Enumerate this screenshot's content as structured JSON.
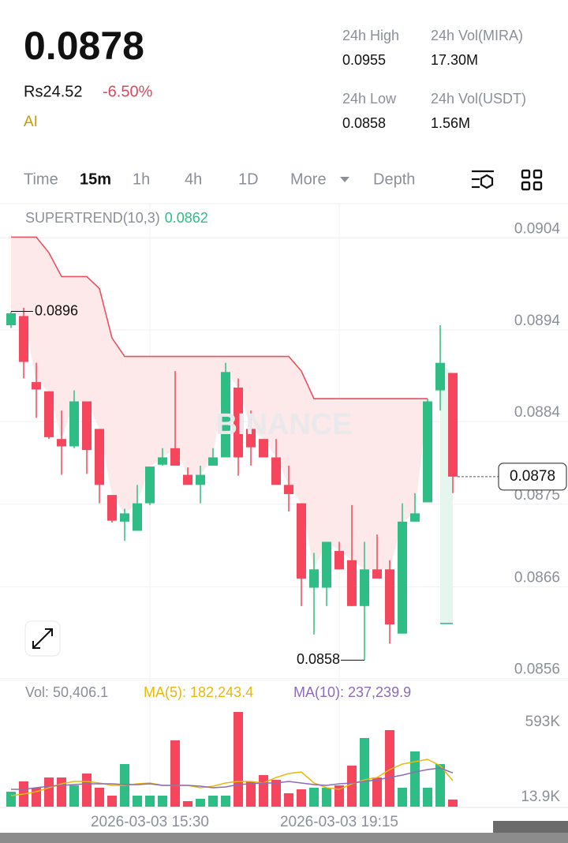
{
  "header": {
    "price": "0.0878",
    "fiat": "Rs24.52",
    "change": "-6.50%",
    "ai": "AI"
  },
  "stats": [
    {
      "label": "24h High",
      "value": "0.0955"
    },
    {
      "label": "24h Vol(MIRA)",
      "value": "17.30M"
    },
    {
      "label": "24h Low",
      "value": "0.0858"
    },
    {
      "label": "24h Vol(USDT)",
      "value": "1.56M"
    }
  ],
  "tabs": [
    "Time",
    "15m",
    "1h",
    "4h",
    "1D",
    "More",
    "Depth"
  ],
  "watermark": "BINANCE",
  "chart_data": {
    "type": "candlestick",
    "indicator": "SUPERTREND(10,3)",
    "up_color": "#2ebd85",
    "down_color": "#f6465d",
    "categories": [
      null,
      null,
      null,
      null,
      null,
      null,
      null,
      null,
      null,
      null,
      null,
      "2026-03-03 15:30",
      null,
      null,
      null,
      null,
      null,
      null,
      null,
      null,
      null,
      null,
      null,
      null,
      null,
      null,
      "2026-03-03 19:15",
      null,
      null,
      null,
      null,
      null,
      null,
      null,
      null,
      null
    ],
    "open": [
      0.08945,
      0.08955,
      0.08883,
      0.08873,
      0.08821,
      0.08813,
      0.08862,
      0.08832,
      0.0876,
      0.08731,
      0.08721,
      0.08751,
      0.08793,
      0.08811,
      0.08782,
      0.08771,
      0.08792,
      0.08801,
      0.08877,
      0.08832,
      0.08821,
      0.08801,
      0.08771,
      0.08751,
      0.08659,
      0.08659,
      0.08699,
      0.08689,
      0.08639,
      0.08679,
      0.08679,
      0.08609,
      0.08731,
      0.08752,
      0.08874,
      0.08893
    ],
    "high": [
      0.0896,
      0.08964,
      0.08904,
      0.08873,
      0.08852,
      0.08874,
      0.08862,
      0.08832,
      0.0876,
      0.08745,
      0.08771,
      0.08791,
      0.08811,
      0.08895,
      0.0879,
      0.08792,
      0.08811,
      0.08904,
      0.08887,
      0.08852,
      0.08821,
      0.08821,
      0.08792,
      0.08751,
      0.08697,
      0.08709,
      0.08709,
      0.08749,
      0.08709,
      0.08717,
      0.08689,
      0.08751,
      0.08762,
      0.08865,
      0.08945,
      0.08893
    ],
    "low": [
      0.08942,
      0.08887,
      0.08844,
      0.08821,
      0.08782,
      0.08811,
      0.08783,
      0.08751,
      0.0873,
      0.0871,
      0.08721,
      0.08749,
      0.08792,
      0.08792,
      0.08771,
      0.08751,
      0.08792,
      0.08801,
      0.08781,
      0.08792,
      0.08801,
      0.08771,
      0.08742,
      0.08639,
      0.08608,
      0.08639,
      0.08679,
      0.08639,
      0.0858,
      0.08669,
      0.08598,
      0.08609,
      0.08731,
      0.08752,
      0.08852,
      0.08762
    ],
    "close": [
      0.08958,
      0.08905,
      0.08875,
      0.08823,
      0.08813,
      0.08862,
      0.08809,
      0.08771,
      0.08732,
      0.0874,
      0.08751,
      0.08791,
      0.08801,
      0.08792,
      0.08771,
      0.08782,
      0.08801,
      0.08894,
      0.08801,
      0.08812,
      0.08801,
      0.08771,
      0.08761,
      0.08669,
      0.08679,
      0.08709,
      0.08679,
      0.08639,
      0.08679,
      0.08669,
      0.08619,
      0.08731,
      0.0874,
      0.08862,
      0.08904,
      0.0878
    ],
    "supertrend_down": {
      "color": "#e8505f",
      "fill": "#fde8ea",
      "values": [
        0.09041,
        0.09041,
        0.09041,
        0.09024,
        0.08998,
        0.08998,
        0.08998,
        0.08985,
        0.08931,
        0.08911,
        0.08911,
        0.08911,
        0.08911,
        0.08911,
        0.08911,
        0.08911,
        0.08911,
        0.08911,
        0.08911,
        0.08911,
        0.08911,
        0.08911,
        0.08911,
        0.08895,
        0.08865,
        0.08865,
        0.08865,
        0.08865,
        0.08865,
        0.08865,
        0.08865,
        0.08865,
        0.08865,
        0.08865,
        null,
        null
      ]
    },
    "supertrend_up": {
      "color": "#2ebd85",
      "fill": "#e5f6ee",
      "values": [
        null,
        null,
        null,
        null,
        null,
        null,
        null,
        null,
        null,
        null,
        null,
        null,
        null,
        null,
        null,
        null,
        null,
        null,
        null,
        null,
        null,
        null,
        null,
        null,
        null,
        null,
        null,
        null,
        null,
        null,
        null,
        null,
        null,
        null,
        0.0862,
        0.0862
      ]
    },
    "ylim": [
      0.08558,
      0.09074
    ],
    "yticks": [
      0.0904,
      0.0894,
      0.0884,
      0.0875,
      0.0866,
      0.0856
    ],
    "grid": true,
    "volume": {
      "vol_label": "Vol: 50,406.1",
      "ma5_label": "MA(5): 182,243.4",
      "ma10_label": "MA(10): 237,239.9",
      "ma5_color": "#e8b90c",
      "ma10_color": "#8e6bb8",
      "values": [
        105300,
        177300,
        133000,
        205100,
        205100,
        149600,
        232800,
        133000,
        77600,
        299300,
        77600,
        77600,
        77600,
        465500,
        38800,
        55400,
        77600,
        77600,
        665000,
        177300,
        221700,
        188400,
        94200,
        121900,
        133000,
        133000,
        149600,
        288200,
        482200,
        205100,
        537600,
        133000,
        387900,
        133000,
        299300,
        50406.1
      ],
      "ma5": [
        77600,
        88700,
        105300,
        133000,
        160700,
        177300,
        177300,
        166300,
        149600,
        149600,
        160700,
        166300,
        149600,
        149600,
        149600,
        133000,
        144100,
        166300,
        177300,
        177300,
        166300,
        205100,
        232800,
        243800,
        166300,
        133000,
        121900,
        160700,
        188400,
        205100,
        260500,
        299300,
        315900,
        332500,
        288200,
        182243.4
      ],
      "ma10": [
        121900,
        121900,
        133000,
        144100,
        149600,
        155200,
        160700,
        160700,
        160700,
        155200,
        155200,
        160700,
        149600,
        149600,
        149600,
        144100,
        133000,
        138600,
        155200,
        160700,
        166300,
        166300,
        177300,
        166300,
        155200,
        149600,
        160700,
        166300,
        177300,
        188400,
        205100,
        221700,
        243800,
        260500,
        271600,
        237239.9
      ],
      "ylim": [
        0,
        665000
      ],
      "yticks": [
        {
          "value": 593000,
          "label": "593K"
        },
        {
          "value": 13900,
          "label": "13.9K"
        }
      ]
    }
  }
}
